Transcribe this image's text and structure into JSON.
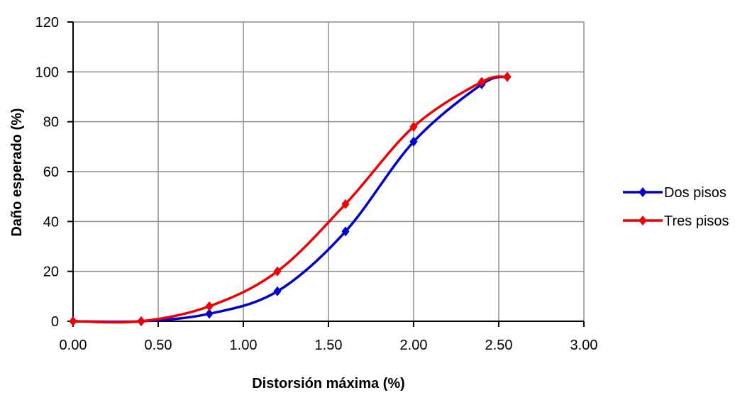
{
  "chart_data": {
    "type": "line",
    "title": "",
    "xlabel": "Distorsión máxima (%)",
    "ylabel": "Daño esperado (%)",
    "xlim": [
      0,
      3
    ],
    "ylim": [
      0,
      120
    ],
    "x_ticks": [
      "0.00",
      "0.50",
      "1.00",
      "1.50",
      "2.00",
      "2.50",
      "3.00"
    ],
    "y_ticks": [
      "0",
      "20",
      "40",
      "60",
      "80",
      "100",
      "120"
    ],
    "grid": true,
    "legend_position": "right",
    "series": [
      {
        "name": "Dos pisos",
        "color": "#0000cc",
        "marker": "diamond",
        "x": [
          0.0,
          0.4,
          0.8,
          1.2,
          1.6,
          2.0,
          2.4,
          2.55
        ],
        "y": [
          0,
          0,
          3,
          12,
          36,
          72,
          95,
          98
        ]
      },
      {
        "name": "Tres pisos",
        "color": "#ee0000",
        "marker": "diamond",
        "x": [
          0.0,
          0.4,
          0.8,
          1.2,
          1.6,
          2.0,
          2.4,
          2.55
        ],
        "y": [
          0,
          0,
          6,
          20,
          47,
          78,
          96,
          98
        ]
      }
    ]
  }
}
